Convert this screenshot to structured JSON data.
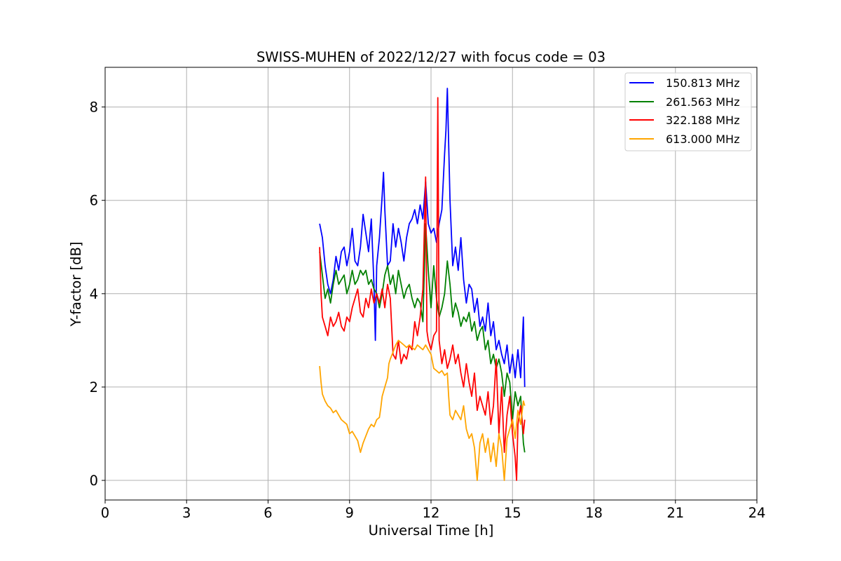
{
  "chart_data": {
    "type": "line",
    "title": "SWISS-MUHEN of 2022/12/27 with focus code = 03",
    "xlabel": "Universal Time [h]",
    "ylabel": "Y-factor [dB]",
    "xlim": [
      0,
      24
    ],
    "ylim": [
      -0.42,
      8.85
    ],
    "xticks": [
      0,
      3,
      6,
      9,
      12,
      15,
      18,
      21,
      24
    ],
    "yticks": [
      0,
      2,
      4,
      6,
      8
    ],
    "xtick_labels": [
      "0",
      "3",
      "6",
      "9",
      "12",
      "15",
      "18",
      "21",
      "24"
    ],
    "ytick_labels": [
      "0",
      "2",
      "4",
      "6",
      "8"
    ],
    "grid": true,
    "legend_position": "top-right",
    "series": [
      {
        "name": "150.813 MHz",
        "color": "#0000ff",
        "points": [
          [
            7.9,
            5.5
          ],
          [
            8.0,
            5.2
          ],
          [
            8.1,
            4.6
          ],
          [
            8.2,
            4.2
          ],
          [
            8.3,
            4.0
          ],
          [
            8.4,
            4.3
          ],
          [
            8.5,
            4.8
          ],
          [
            8.6,
            4.5
          ],
          [
            8.7,
            4.9
          ],
          [
            8.8,
            5.0
          ],
          [
            8.9,
            4.6
          ],
          [
            9.0,
            4.9
          ],
          [
            9.1,
            5.4
          ],
          [
            9.2,
            4.7
          ],
          [
            9.3,
            4.6
          ],
          [
            9.4,
            5.0
          ],
          [
            9.5,
            5.7
          ],
          [
            9.6,
            5.3
          ],
          [
            9.7,
            4.9
          ],
          [
            9.8,
            5.6
          ],
          [
            9.9,
            4.2
          ],
          [
            9.95,
            3.0
          ],
          [
            10.0,
            4.6
          ],
          [
            10.1,
            5.2
          ],
          [
            10.2,
            6.1
          ],
          [
            10.25,
            6.6
          ],
          [
            10.3,
            5.8
          ],
          [
            10.4,
            4.6
          ],
          [
            10.5,
            4.7
          ],
          [
            10.6,
            5.5
          ],
          [
            10.7,
            5.0
          ],
          [
            10.8,
            5.4
          ],
          [
            10.9,
            5.1
          ],
          [
            11.0,
            4.7
          ],
          [
            11.1,
            5.2
          ],
          [
            11.2,
            5.5
          ],
          [
            11.3,
            5.6
          ],
          [
            11.4,
            5.8
          ],
          [
            11.5,
            5.5
          ],
          [
            11.6,
            5.9
          ],
          [
            11.7,
            5.6
          ],
          [
            11.8,
            6.4
          ],
          [
            11.9,
            5.5
          ],
          [
            12.0,
            5.3
          ],
          [
            12.1,
            5.4
          ],
          [
            12.2,
            5.1
          ],
          [
            12.3,
            5.5
          ],
          [
            12.4,
            5.8
          ],
          [
            12.5,
            7.0
          ],
          [
            12.55,
            7.5
          ],
          [
            12.6,
            8.4
          ],
          [
            12.7,
            6.0
          ],
          [
            12.8,
            4.6
          ],
          [
            12.9,
            5.0
          ],
          [
            13.0,
            4.5
          ],
          [
            13.1,
            5.2
          ],
          [
            13.2,
            4.3
          ],
          [
            13.3,
            3.8
          ],
          [
            13.4,
            4.2
          ],
          [
            13.5,
            4.1
          ],
          [
            13.6,
            3.6
          ],
          [
            13.7,
            3.9
          ],
          [
            13.8,
            3.3
          ],
          [
            13.9,
            3.5
          ],
          [
            14.0,
            3.2
          ],
          [
            14.1,
            3.8
          ],
          [
            14.2,
            3.1
          ],
          [
            14.3,
            3.4
          ],
          [
            14.4,
            2.8
          ],
          [
            14.5,
            3.0
          ],
          [
            14.6,
            2.7
          ],
          [
            14.7,
            2.5
          ],
          [
            14.8,
            2.9
          ],
          [
            14.9,
            2.3
          ],
          [
            15.0,
            2.7
          ],
          [
            15.1,
            2.2
          ],
          [
            15.2,
            2.8
          ],
          [
            15.3,
            2.2
          ],
          [
            15.4,
            3.5
          ],
          [
            15.45,
            2.0
          ]
        ]
      },
      {
        "name": "261.563 MHz",
        "color": "#008000",
        "points": [
          [
            7.9,
            4.9
          ],
          [
            8.0,
            4.4
          ],
          [
            8.1,
            3.9
          ],
          [
            8.2,
            4.1
          ],
          [
            8.3,
            3.8
          ],
          [
            8.4,
            4.2
          ],
          [
            8.5,
            4.5
          ],
          [
            8.6,
            4.2
          ],
          [
            8.7,
            4.3
          ],
          [
            8.8,
            4.4
          ],
          [
            8.9,
            4.0
          ],
          [
            9.0,
            4.2
          ],
          [
            9.1,
            4.5
          ],
          [
            9.2,
            4.2
          ],
          [
            9.3,
            4.3
          ],
          [
            9.4,
            4.5
          ],
          [
            9.5,
            4.4
          ],
          [
            9.6,
            4.5
          ],
          [
            9.7,
            4.2
          ],
          [
            9.8,
            4.3
          ],
          [
            9.9,
            4.1
          ],
          [
            10.0,
            4.0
          ],
          [
            10.1,
            3.7
          ],
          [
            10.2,
            4.0
          ],
          [
            10.3,
            4.4
          ],
          [
            10.4,
            4.6
          ],
          [
            10.5,
            4.2
          ],
          [
            10.6,
            4.4
          ],
          [
            10.7,
            4.0
          ],
          [
            10.8,
            4.5
          ],
          [
            10.9,
            4.2
          ],
          [
            11.0,
            3.9
          ],
          [
            11.1,
            4.1
          ],
          [
            11.2,
            4.2
          ],
          [
            11.3,
            3.9
          ],
          [
            11.4,
            3.7
          ],
          [
            11.5,
            3.9
          ],
          [
            11.6,
            3.8
          ],
          [
            11.7,
            3.4
          ],
          [
            11.8,
            5.5
          ],
          [
            11.9,
            4.5
          ],
          [
            12.0,
            3.7
          ],
          [
            12.1,
            4.6
          ],
          [
            12.2,
            3.9
          ],
          [
            12.3,
            3.5
          ],
          [
            12.4,
            3.7
          ],
          [
            12.5,
            4.0
          ],
          [
            12.6,
            4.7
          ],
          [
            12.7,
            4.2
          ],
          [
            12.8,
            3.5
          ],
          [
            12.9,
            3.8
          ],
          [
            13.0,
            3.6
          ],
          [
            13.1,
            3.3
          ],
          [
            13.2,
            3.5
          ],
          [
            13.3,
            3.4
          ],
          [
            13.4,
            3.6
          ],
          [
            13.5,
            3.2
          ],
          [
            13.6,
            3.4
          ],
          [
            13.7,
            3.0
          ],
          [
            13.8,
            3.2
          ],
          [
            13.9,
            3.3
          ],
          [
            14.0,
            2.8
          ],
          [
            14.1,
            3.0
          ],
          [
            14.2,
            2.5
          ],
          [
            14.3,
            2.7
          ],
          [
            14.4,
            2.4
          ],
          [
            14.5,
            2.6
          ],
          [
            14.6,
            2.3
          ],
          [
            14.7,
            1.8
          ],
          [
            14.8,
            2.3
          ],
          [
            14.9,
            2.1
          ],
          [
            15.0,
            1.3
          ],
          [
            15.1,
            1.9
          ],
          [
            15.2,
            1.6
          ],
          [
            15.3,
            1.8
          ],
          [
            15.4,
            0.8
          ],
          [
            15.45,
            0.6
          ]
        ]
      },
      {
        "name": "322.188 MHz",
        "color": "#ff0000",
        "points": [
          [
            7.9,
            5.0
          ],
          [
            7.95,
            4.0
          ],
          [
            8.0,
            3.5
          ],
          [
            8.1,
            3.3
          ],
          [
            8.2,
            3.1
          ],
          [
            8.3,
            3.5
          ],
          [
            8.4,
            3.3
          ],
          [
            8.5,
            3.4
          ],
          [
            8.6,
            3.6
          ],
          [
            8.7,
            3.3
          ],
          [
            8.8,
            3.2
          ],
          [
            8.9,
            3.5
          ],
          [
            9.0,
            3.4
          ],
          [
            9.1,
            3.7
          ],
          [
            9.2,
            3.9
          ],
          [
            9.3,
            4.1
          ],
          [
            9.4,
            3.6
          ],
          [
            9.5,
            3.5
          ],
          [
            9.6,
            3.9
          ],
          [
            9.7,
            3.7
          ],
          [
            9.8,
            4.1
          ],
          [
            9.9,
            3.8
          ],
          [
            10.0,
            4.0
          ],
          [
            10.1,
            3.8
          ],
          [
            10.2,
            4.1
          ],
          [
            10.3,
            3.7
          ],
          [
            10.4,
            4.2
          ],
          [
            10.5,
            3.9
          ],
          [
            10.6,
            2.7
          ],
          [
            10.7,
            2.6
          ],
          [
            10.8,
            3.0
          ],
          [
            10.9,
            2.5
          ],
          [
            11.0,
            2.7
          ],
          [
            11.1,
            2.6
          ],
          [
            11.2,
            2.9
          ],
          [
            11.3,
            2.8
          ],
          [
            11.4,
            3.4
          ],
          [
            11.5,
            3.1
          ],
          [
            11.6,
            3.5
          ],
          [
            11.7,
            4.1
          ],
          [
            11.8,
            6.5
          ],
          [
            11.85,
            3.2
          ],
          [
            11.9,
            3.0
          ],
          [
            12.0,
            2.8
          ],
          [
            12.1,
            3.1
          ],
          [
            12.2,
            3.2
          ],
          [
            12.25,
            8.2
          ],
          [
            12.3,
            3.0
          ],
          [
            12.4,
            2.5
          ],
          [
            12.5,
            2.8
          ],
          [
            12.6,
            2.4
          ],
          [
            12.7,
            2.6
          ],
          [
            12.8,
            2.9
          ],
          [
            12.9,
            2.5
          ],
          [
            13.0,
            2.7
          ],
          [
            13.1,
            2.3
          ],
          [
            13.2,
            2.0
          ],
          [
            13.3,
            2.5
          ],
          [
            13.4,
            2.1
          ],
          [
            13.5,
            1.8
          ],
          [
            13.6,
            2.3
          ],
          [
            13.7,
            1.5
          ],
          [
            13.8,
            1.8
          ],
          [
            13.9,
            1.6
          ],
          [
            14.0,
            1.4
          ],
          [
            14.1,
            1.9
          ],
          [
            14.2,
            1.2
          ],
          [
            14.3,
            1.6
          ],
          [
            14.4,
            2.6
          ],
          [
            14.5,
            1.0
          ],
          [
            14.6,
            2.0
          ],
          [
            14.7,
            0.6
          ],
          [
            14.8,
            1.4
          ],
          [
            14.9,
            1.8
          ],
          [
            15.0,
            1.0
          ],
          [
            15.1,
            0.5
          ],
          [
            15.15,
            0.0
          ],
          [
            15.2,
            1.2
          ],
          [
            15.3,
            1.6
          ],
          [
            15.4,
            1.0
          ],
          [
            15.45,
            1.3
          ]
        ]
      },
      {
        "name": "613.000 MHz",
        "color": "#ffa500",
        "points": [
          [
            7.9,
            2.45
          ],
          [
            7.95,
            2.1
          ],
          [
            8.0,
            1.85
          ],
          [
            8.1,
            1.7
          ],
          [
            8.2,
            1.6
          ],
          [
            8.3,
            1.55
          ],
          [
            8.4,
            1.45
          ],
          [
            8.5,
            1.5
          ],
          [
            8.6,
            1.4
          ],
          [
            8.7,
            1.3
          ],
          [
            8.8,
            1.25
          ],
          [
            8.9,
            1.2
          ],
          [
            9.0,
            1.0
          ],
          [
            9.1,
            1.05
          ],
          [
            9.2,
            0.95
          ],
          [
            9.3,
            0.85
          ],
          [
            9.4,
            0.6
          ],
          [
            9.5,
            0.8
          ],
          [
            9.6,
            0.95
          ],
          [
            9.7,
            1.1
          ],
          [
            9.8,
            1.2
          ],
          [
            9.9,
            1.15
          ],
          [
            10.0,
            1.3
          ],
          [
            10.1,
            1.35
          ],
          [
            10.15,
            1.55
          ],
          [
            10.2,
            1.8
          ],
          [
            10.3,
            2.0
          ],
          [
            10.4,
            2.2
          ],
          [
            10.45,
            2.5
          ],
          [
            10.5,
            2.6
          ],
          [
            10.6,
            2.75
          ],
          [
            10.7,
            2.9
          ],
          [
            10.8,
            3.0
          ],
          [
            10.9,
            2.95
          ],
          [
            11.0,
            2.9
          ],
          [
            11.1,
            2.85
          ],
          [
            11.2,
            2.9
          ],
          [
            11.3,
            2.85
          ],
          [
            11.4,
            2.8
          ],
          [
            11.5,
            2.9
          ],
          [
            11.6,
            2.85
          ],
          [
            11.7,
            2.8
          ],
          [
            11.8,
            2.9
          ],
          [
            11.9,
            2.8
          ],
          [
            12.0,
            2.7
          ],
          [
            12.1,
            2.4
          ],
          [
            12.2,
            2.35
          ],
          [
            12.3,
            2.3
          ],
          [
            12.4,
            2.35
          ],
          [
            12.5,
            2.25
          ],
          [
            12.6,
            2.3
          ],
          [
            12.65,
            1.8
          ],
          [
            12.7,
            1.4
          ],
          [
            12.8,
            1.3
          ],
          [
            12.9,
            1.5
          ],
          [
            13.0,
            1.4
          ],
          [
            13.1,
            1.3
          ],
          [
            13.2,
            1.6
          ],
          [
            13.3,
            1.1
          ],
          [
            13.4,
            0.9
          ],
          [
            13.5,
            1.0
          ],
          [
            13.6,
            0.7
          ],
          [
            13.7,
            0.0
          ],
          [
            13.8,
            0.8
          ],
          [
            13.9,
            1.0
          ],
          [
            14.0,
            0.6
          ],
          [
            14.1,
            0.9
          ],
          [
            14.2,
            0.4
          ],
          [
            14.3,
            0.8
          ],
          [
            14.4,
            0.3
          ],
          [
            14.5,
            1.0
          ],
          [
            14.6,
            0.7
          ],
          [
            14.7,
            0.0
          ],
          [
            14.8,
            0.9
          ],
          [
            14.9,
            1.1
          ],
          [
            15.0,
            1.3
          ],
          [
            15.1,
            0.9
          ],
          [
            15.2,
            1.5
          ],
          [
            15.3,
            1.2
          ],
          [
            15.4,
            1.7
          ],
          [
            15.45,
            1.6
          ]
        ]
      }
    ]
  }
}
